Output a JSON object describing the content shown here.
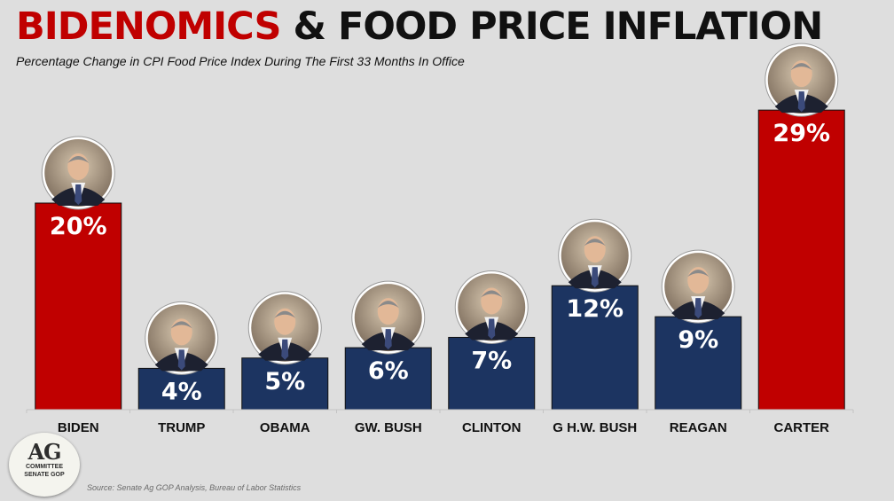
{
  "title_part1": "BIDENOMICS",
  "title_part2": "& FOOD PRICE INFLATION",
  "subtitle": "Percentage Change in CPI Food Price Index During The First 33 Months In Office",
  "source": "Source: Senate Ag GOP Analysis, Bureau of Labor Statistics",
  "logo": {
    "line1": "AG",
    "line2": "COMMITTEE",
    "line3": "SENATE GOP"
  },
  "colors": {
    "highlight": "#c00000",
    "normal": "#1c3461",
    "title_red": "#c00000"
  },
  "chart_data": {
    "type": "bar",
    "title": "BIDENOMICS & FOOD PRICE INFLATION",
    "subtitle": "Percentage Change in CPI Food Price Index During The First 33 Months In Office",
    "xlabel": "",
    "ylabel": "",
    "ylim": [
      0,
      30
    ],
    "grid": false,
    "categories": [
      "BIDEN",
      "TRUMP",
      "OBAMA",
      "GW. BUSH",
      "CLINTON",
      "G H.W. BUSH",
      "REAGAN",
      "CARTER"
    ],
    "values": [
      20,
      4,
      5,
      6,
      7,
      12,
      9,
      29
    ],
    "labels": [
      "20%",
      "4%",
      "5%",
      "6%",
      "7%",
      "12%",
      "9%",
      "29%"
    ],
    "highlighted": [
      "BIDEN",
      "CARTER"
    ]
  }
}
